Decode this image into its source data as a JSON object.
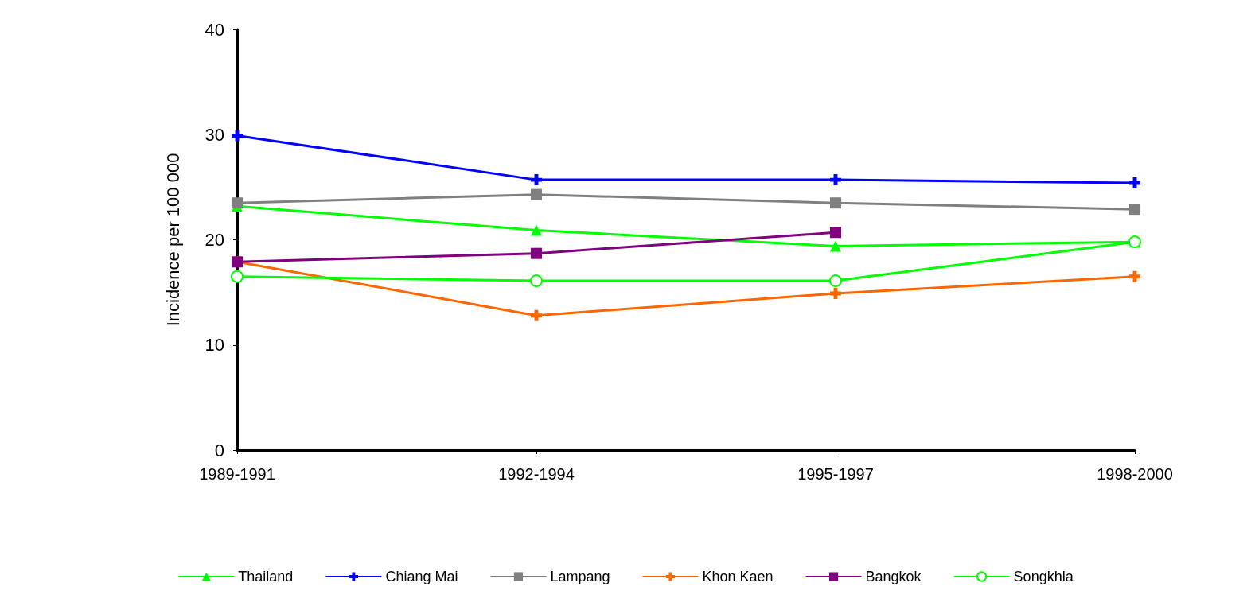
{
  "chart_data": {
    "type": "line",
    "ylabel": "Incidence per 100 000",
    "categories": [
      "1989-1991",
      "1992-1994",
      "1995-1997",
      "1998-2000"
    ],
    "ylim": [
      0,
      40
    ],
    "yticks": [
      0,
      10,
      20,
      30,
      40
    ],
    "grid": false,
    "legend": "bottom",
    "line_style": "solid",
    "series": [
      {
        "name": "Thailand",
        "color": "#00ff00",
        "marker": "triangle",
        "values": [
          23.2,
          20.9,
          19.4,
          19.8
        ]
      },
      {
        "name": "Chiang Mai",
        "color": "#0000ff",
        "marker": "cross",
        "values": [
          29.9,
          25.7,
          25.7,
          25.4
        ]
      },
      {
        "name": "Lampang",
        "color": "#808080",
        "marker": "square",
        "values": [
          23.5,
          24.3,
          23.5,
          22.9
        ]
      },
      {
        "name": "Khon Kaen",
        "color": "#ff6600",
        "marker": "cross",
        "values": [
          17.9,
          12.8,
          14.9,
          16.5
        ]
      },
      {
        "name": "Bangkok",
        "color": "#800080",
        "marker": "square",
        "values": [
          17.9,
          18.7,
          20.7,
          null
        ]
      },
      {
        "name": "Songkhla",
        "color": "#00ff00",
        "marker": "circle",
        "values": [
          16.5,
          16.1,
          16.1,
          19.8
        ]
      }
    ]
  }
}
